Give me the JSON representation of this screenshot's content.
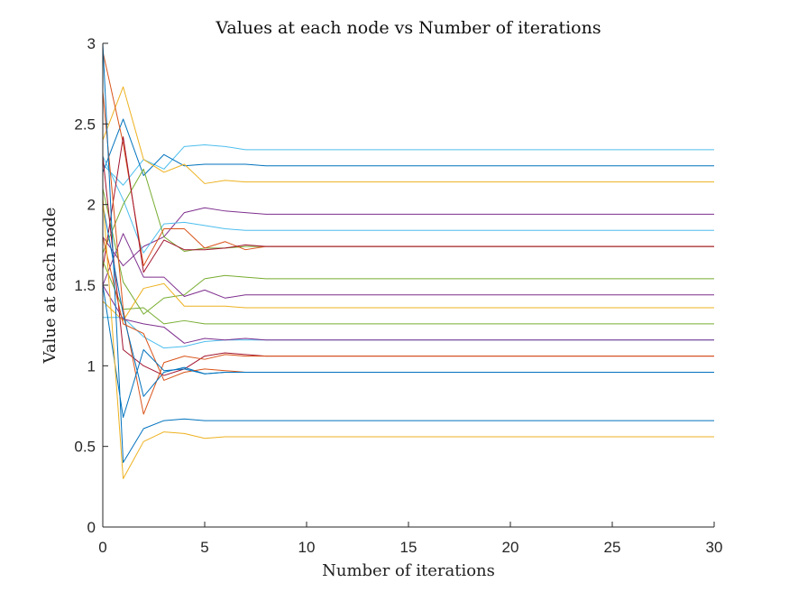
{
  "chart_data": {
    "type": "line",
    "title": "Values at each node vs Number of iterations",
    "xlabel": "Number of iterations",
    "ylabel": "Value at each node",
    "xlim": [
      0,
      30
    ],
    "ylim": [
      0,
      3
    ],
    "xticks": [
      0,
      5,
      10,
      15,
      20,
      25,
      30
    ],
    "yticks": [
      0,
      0.5,
      1,
      1.5,
      2,
      2.5,
      3
    ],
    "grid": false,
    "legend": "none",
    "series": [
      {
        "color": "#4DBEEE",
        "values": [
          2.25,
          2.12,
          2.28,
          2.22,
          2.36,
          2.37,
          2.36,
          2.34,
          2.34
        ]
      },
      {
        "color": "#0072BD",
        "values": [
          2.2,
          2.53,
          2.18,
          2.31,
          2.24,
          2.25,
          2.25,
          2.25,
          2.24
        ]
      },
      {
        "color": "#EDB120",
        "values": [
          2.4,
          2.73,
          2.28,
          2.2,
          2.25,
          2.13,
          2.15,
          2.14,
          2.14
        ]
      },
      {
        "color": "#7E2F8E",
        "values": [
          1.8,
          1.62,
          1.74,
          1.8,
          1.95,
          1.98,
          1.96,
          1.95,
          1.94
        ]
      },
      {
        "color": "#4DBEEE",
        "values": [
          2.3,
          2.03,
          1.7,
          1.88,
          1.89,
          1.87,
          1.85,
          1.84,
          1.84
        ]
      },
      {
        "color": "#77AC30",
        "values": [
          1.7,
          2.0,
          2.22,
          1.8,
          1.71,
          1.73,
          1.73,
          1.74,
          1.74
        ]
      },
      {
        "color": "#D95319",
        "values": [
          2.95,
          2.38,
          1.62,
          1.85,
          1.85,
          1.73,
          1.77,
          1.72,
          1.74
        ]
      },
      {
        "color": "#A2142F",
        "values": [
          1.6,
          2.42,
          1.58,
          1.78,
          1.72,
          1.72,
          1.73,
          1.75,
          1.74
        ]
      },
      {
        "color": "#77AC30",
        "values": [
          2.1,
          1.52,
          1.32,
          1.42,
          1.44,
          1.54,
          1.56,
          1.55,
          1.54
        ]
      },
      {
        "color": "#7E2F8E",
        "values": [
          1.5,
          1.82,
          1.55,
          1.55,
          1.43,
          1.47,
          1.42,
          1.44,
          1.44
        ]
      },
      {
        "color": "#EDB120",
        "values": [
          1.4,
          1.28,
          1.48,
          1.51,
          1.37,
          1.37,
          1.37,
          1.36,
          1.36
        ]
      },
      {
        "color": "#77AC30",
        "values": [
          1.65,
          1.35,
          1.36,
          1.26,
          1.28,
          1.26,
          1.26,
          1.26,
          1.26
        ]
      },
      {
        "color": "#4DBEEE",
        "values": [
          1.3,
          1.3,
          1.18,
          1.11,
          1.12,
          1.15,
          1.16,
          1.16,
          1.16
        ]
      },
      {
        "color": "#7E2F8E",
        "values": [
          1.5,
          1.29,
          1.26,
          1.24,
          1.14,
          1.17,
          1.16,
          1.17,
          1.16
        ]
      },
      {
        "color": "#A2142F",
        "values": [
          2.3,
          1.1,
          1.0,
          0.94,
          0.98,
          1.06,
          1.08,
          1.07,
          1.06
        ]
      },
      {
        "color": "#D95319",
        "values": [
          2.7,
          1.35,
          0.7,
          1.02,
          1.06,
          1.04,
          1.07,
          1.06,
          1.06
        ]
      },
      {
        "color": "#0072BD",
        "values": [
          2.0,
          1.32,
          0.81,
          0.96,
          0.99,
          0.95,
          0.96,
          0.96,
          0.96
        ]
      },
      {
        "color": "#D95319",
        "values": [
          1.8,
          1.26,
          1.2,
          0.91,
          0.96,
          0.98,
          0.97,
          0.96,
          0.96
        ]
      },
      {
        "color": "#0072BD",
        "values": [
          1.5,
          0.68,
          1.1,
          0.97,
          0.98,
          0.95,
          0.96,
          0.96,
          0.96
        ]
      },
      {
        "color": "#0072BD",
        "values": [
          3.0,
          0.4,
          0.61,
          0.66,
          0.67,
          0.66,
          0.66,
          0.66,
          0.66
        ]
      },
      {
        "color": "#EDB120",
        "values": [
          2.05,
          0.3,
          0.53,
          0.59,
          0.58,
          0.55,
          0.56,
          0.56,
          0.56
        ]
      }
    ]
  }
}
